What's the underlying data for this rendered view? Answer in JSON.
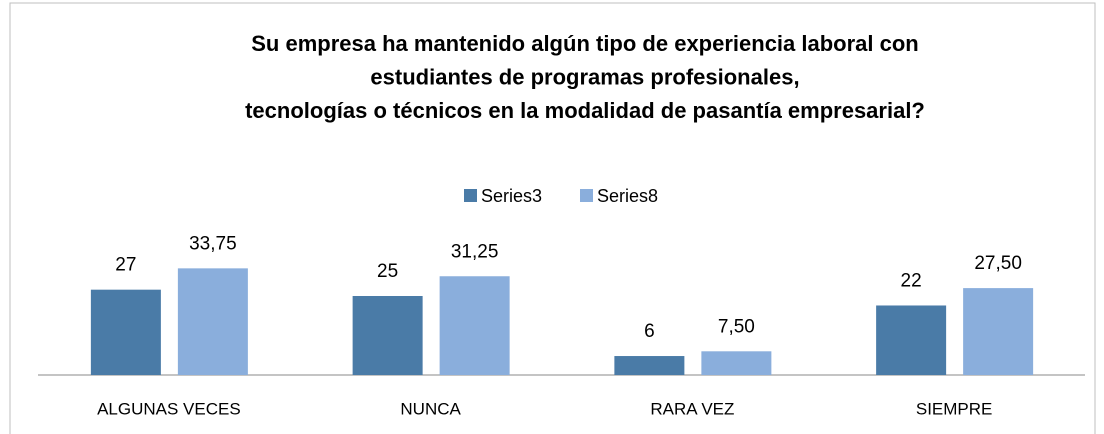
{
  "chart_data": {
    "type": "bar",
    "title": [
      "Su empresa ha mantenido algún tipo de experiencia laboral con",
      "estudiantes de programas profesionales,",
      "tecnologías o técnicos en la modalidad de pasantía empresarial?"
    ],
    "categories": [
      "ALGUNAS VECES",
      "NUNCA",
      "RARA VEZ",
      "SIEMPRE"
    ],
    "series": [
      {
        "name": "Series3",
        "color": "#4a7ba7",
        "values": [
          27,
          25,
          6,
          22
        ]
      },
      {
        "name": "Series8",
        "color": "#8aaedc",
        "values": [
          33.75,
          31.25,
          7.5,
          27.5
        ],
        "value_labels": [
          "33,75",
          "31,25",
          "7,50",
          "27,50"
        ]
      }
    ],
    "legend": "top"
  }
}
